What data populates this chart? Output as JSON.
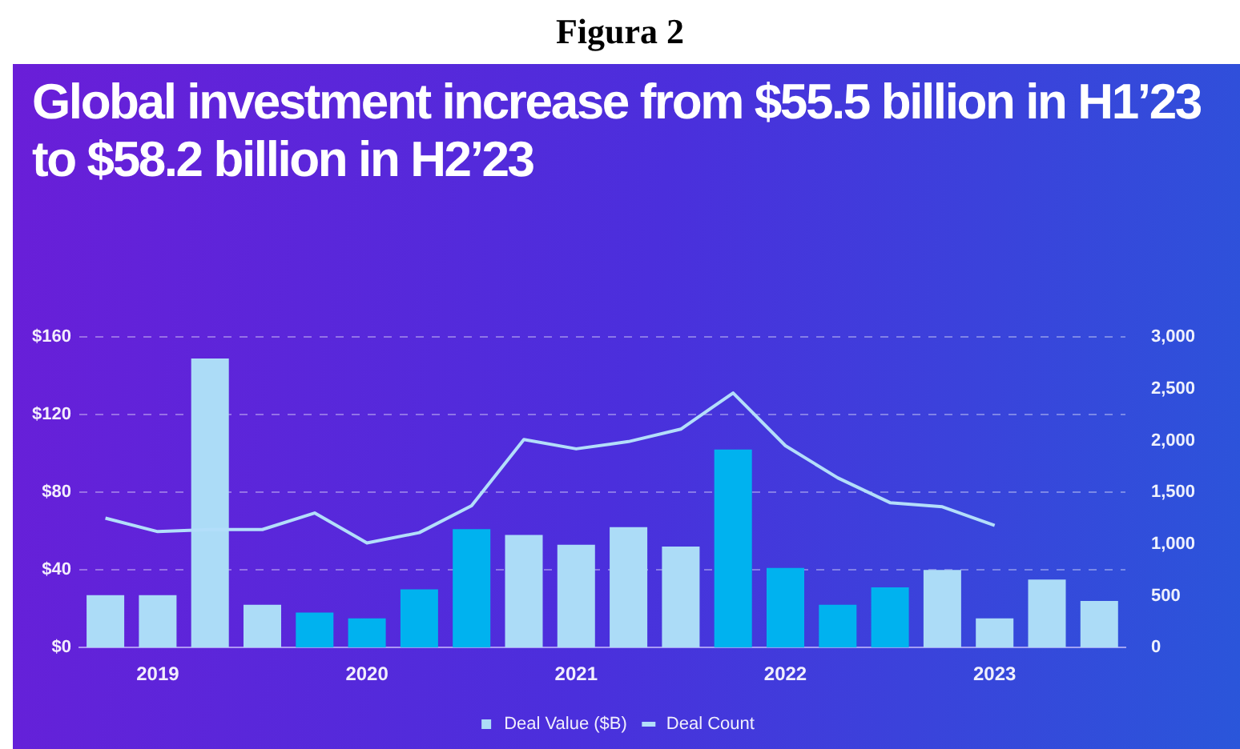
{
  "chart_data": {
    "type": "bar",
    "title": "Global investment increase from $55.5 billion in H1’23 to $58.2 billion in H2’23",
    "annotations": [
      "Figura 2"
    ],
    "categories": [
      null,
      "2019",
      null,
      null,
      null,
      "2020",
      null,
      null,
      null,
      "2021",
      null,
      null,
      null,
      "2022",
      null,
      null,
      null,
      "2023",
      null,
      null
    ],
    "series": [
      {
        "name": "Deal Value ($B)",
        "type": "bar",
        "colors": [
          "#acdcf7",
          "#acdcf7",
          "#acdcf7",
          "#acdcf7",
          "#00b2ef",
          "#00b2ef",
          "#00b2ef",
          "#00b2ef",
          "#acdcf7",
          "#acdcf7",
          "#acdcf7",
          "#acdcf7",
          "#00b2ef",
          "#00b2ef",
          "#00b2ef",
          "#00b2ef",
          "#acdcf7",
          "#acdcf7",
          "#acdcf7",
          "#acdcf7"
        ],
        "values": [
          27,
          27,
          149,
          22,
          18,
          15,
          30,
          61,
          58,
          53,
          62,
          52,
          102,
          41,
          22,
          31,
          40,
          15,
          35,
          24
        ]
      },
      {
        "name": "Deal Count",
        "type": "line",
        "axis": "y2",
        "color": "#b3defa",
        "values": [
          1250,
          1120,
          1140,
          1140,
          1300,
          1010,
          1110,
          1370,
          2010,
          1920,
          1990,
          2110,
          2460,
          1950,
          1640,
          1400,
          1360,
          1180,
          null,
          null
        ]
      }
    ],
    "ylim": [
      0,
      160
    ],
    "yticks": [
      {
        "value": 0,
        "label": "$0"
      },
      {
        "value": 40,
        "label": "$40"
      },
      {
        "value": 80,
        "label": "$80"
      },
      {
        "value": 120,
        "label": "$120"
      },
      {
        "value": 160,
        "label": "$160"
      }
    ],
    "y2lim": [
      0,
      3000
    ],
    "y2ticks": [
      0,
      500,
      {
        "value": 1000,
        "label": "1,000"
      },
      {
        "value": 1500,
        "label": "1,500"
      },
      {
        "value": 2000,
        "label": "2,000"
      },
      {
        "value": 2500,
        "label": "2,500"
      },
      {
        "value": 3000,
        "label": "3,000"
      }
    ],
    "grid": "y",
    "legend": "bottom",
    "marker": "none",
    "line_style": "solid"
  }
}
